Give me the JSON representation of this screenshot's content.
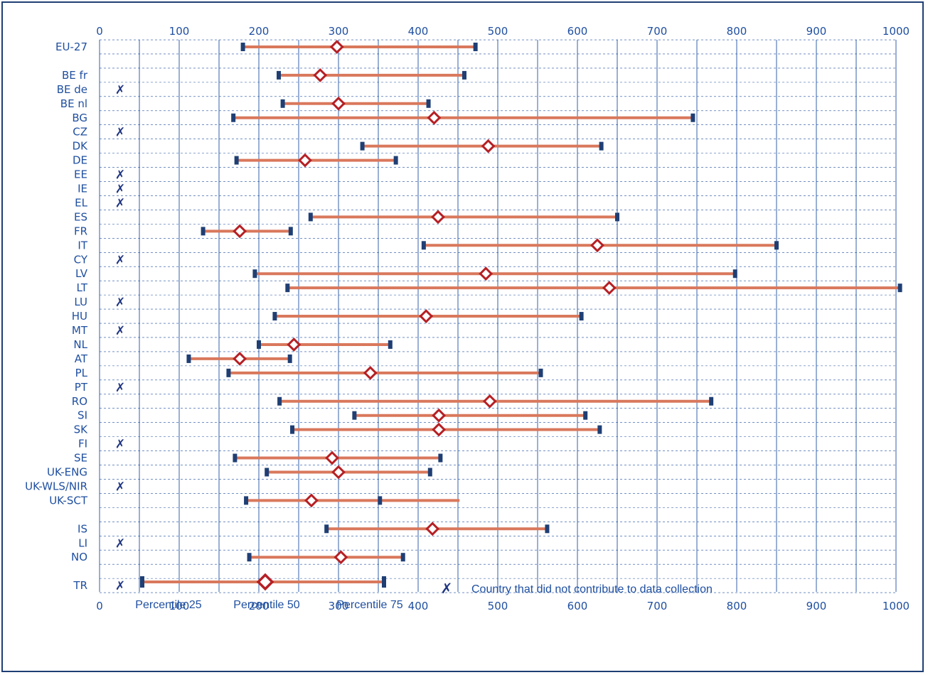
{
  "chart_data": {
    "type": "range",
    "xlim": [
      0,
      1000
    ],
    "x_ticks": [
      0,
      100,
      200,
      300,
      400,
      500,
      600,
      700,
      800,
      900,
      1000
    ],
    "colors": {
      "range_bar": "#d9785c",
      "median_marker": "#b52025",
      "end_marker": "#1f3f74",
      "grid": "#1f4fa0",
      "text": "#1f4fa0"
    },
    "rows": [
      {
        "label": "EU-27",
        "p25": 180,
        "p50": 298,
        "p75": 472
      },
      {
        "label": "",
        "blank": true
      },
      {
        "label": "BE fr",
        "p25": 225,
        "p50": 277,
        "p75": 458
      },
      {
        "label": "BE de",
        "no_data": true
      },
      {
        "label": "BE nl",
        "p25": 230,
        "p50": 300,
        "p75": 413
      },
      {
        "label": "BG",
        "p25": 168,
        "p50": 420,
        "p75": 745
      },
      {
        "label": "CZ",
        "no_data": true
      },
      {
        "label": "DK",
        "p25": 330,
        "p50": 488,
        "p75": 630
      },
      {
        "label": "DE",
        "p25": 172,
        "p50": 258,
        "p75": 372
      },
      {
        "label": "EE",
        "no_data": true
      },
      {
        "label": "IE",
        "no_data": true
      },
      {
        "label": "EL",
        "no_data": true
      },
      {
        "label": "ES",
        "p25": 265,
        "p50": 425,
        "p75": 650
      },
      {
        "label": "FR",
        "p25": 130,
        "p50": 176,
        "p75": 240
      },
      {
        "label": "IT",
        "p25": 407,
        "p50": 625,
        "p75": 850
      },
      {
        "label": "CY",
        "no_data": true
      },
      {
        "label": "LV",
        "p25": 195,
        "p50": 485,
        "p75": 798
      },
      {
        "label": "LT",
        "p25": 236,
        "p50": 640,
        "p75": 1005
      },
      {
        "label": "LU",
        "no_data": true
      },
      {
        "label": "HU",
        "p25": 220,
        "p50": 410,
        "p75": 605
      },
      {
        "label": "MT",
        "no_data": true
      },
      {
        "label": "NL",
        "p25": 200,
        "p50": 244,
        "p75": 365
      },
      {
        "label": "AT",
        "p25": 112,
        "p50": 176,
        "p75": 239
      },
      {
        "label": "PL",
        "p25": 162,
        "p50": 340,
        "p75": 554
      },
      {
        "label": "PT",
        "no_data": true
      },
      {
        "label": "RO",
        "p25": 226,
        "p50": 490,
        "p75": 768
      },
      {
        "label": "SI",
        "p25": 320,
        "p50": 426,
        "p75": 610
      },
      {
        "label": "SK",
        "p25": 242,
        "p50": 426,
        "p75": 628
      },
      {
        "label": "FI",
        "no_data": true
      },
      {
        "label": "SE",
        "p25": 170,
        "p50": 292,
        "p75": 428
      },
      {
        "label": "UK-ENG",
        "p25": 210,
        "p50": 300,
        "p75": 415
      },
      {
        "label": "UK-WLS/NIR",
        "no_data": true
      },
      {
        "label": "UK-SCT",
        "p25": 184,
        "p50": 266,
        "p75": 352,
        "extension": 452
      },
      {
        "label": "",
        "blank": true
      },
      {
        "label": "IS",
        "p25": 285,
        "p50": 418,
        "p75": 562
      },
      {
        "label": "LI",
        "no_data": true
      },
      {
        "label": "NO",
        "p25": 188,
        "p50": 303,
        "p75": 381
      },
      {
        "label": "",
        "blank": true
      },
      {
        "label": "TR",
        "no_data": true
      }
    ]
  },
  "no_data_mark": "✗",
  "legend": {
    "p25": "Percentile 25",
    "p50": "Percentile 50",
    "p75": "Percentile 75",
    "no_data": "Country that did not contribute to data collection"
  }
}
